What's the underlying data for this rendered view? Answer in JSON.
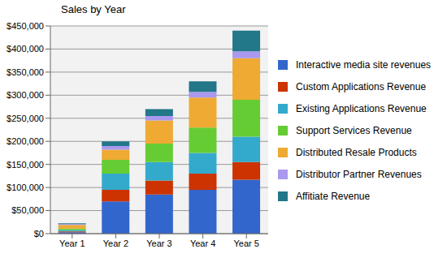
{
  "chart_data": {
    "type": "bar",
    "title": "Sales by Year",
    "categories": [
      "Year 1",
      "Year 2",
      "Year 3",
      "Year 4",
      "Year 5"
    ],
    "series": [
      {
        "name": "Interactive media site revenues",
        "color": "#3366cc",
        "values": [
          3000,
          70000,
          85000,
          95000,
          117000
        ]
      },
      {
        "name": "Custom Applications Revenue",
        "color": "#cc3300",
        "values": [
          2000,
          25000,
          30000,
          35000,
          38000
        ]
      },
      {
        "name": "Existing Applications Revenue",
        "color": "#33aacc",
        "values": [
          3000,
          35000,
          40000,
          45000,
          55000
        ]
      },
      {
        "name": "Support Services Revenue",
        "color": "#66cc33",
        "values": [
          3000,
          30000,
          40000,
          55000,
          80000
        ]
      },
      {
        "name": "Distributed Resale Products",
        "color": "#eeaa33",
        "values": [
          8000,
          22000,
          50000,
          65000,
          90000
        ]
      },
      {
        "name": "Distributor Partner Revenues",
        "color": "#aa99ee",
        "values": [
          1500,
          8000,
          10000,
          12000,
          15000
        ]
      },
      {
        "name": "Affitiate Revenue",
        "color": "#227788",
        "values": [
          2000,
          10000,
          15000,
          23000,
          45000
        ]
      }
    ],
    "ylim": [
      0,
      450000
    ],
    "yticks": [
      {
        "value": 0,
        "label": "$0"
      },
      {
        "value": 50000,
        "label": "$50,000"
      },
      {
        "value": 100000,
        "label": "$100,000"
      },
      {
        "value": 150000,
        "label": "$150,000"
      },
      {
        "value": 200000,
        "label": "$200,000"
      },
      {
        "value": 250000,
        "label": "$250,000"
      },
      {
        "value": 300000,
        "label": "$300,000"
      },
      {
        "value": 350000,
        "label": "$350,000"
      },
      {
        "value": 400000,
        "label": "$400,000"
      },
      {
        "value": 450000,
        "label": "$450,000"
      }
    ],
    "stacked": true,
    "grid": true,
    "legend": "right"
  }
}
